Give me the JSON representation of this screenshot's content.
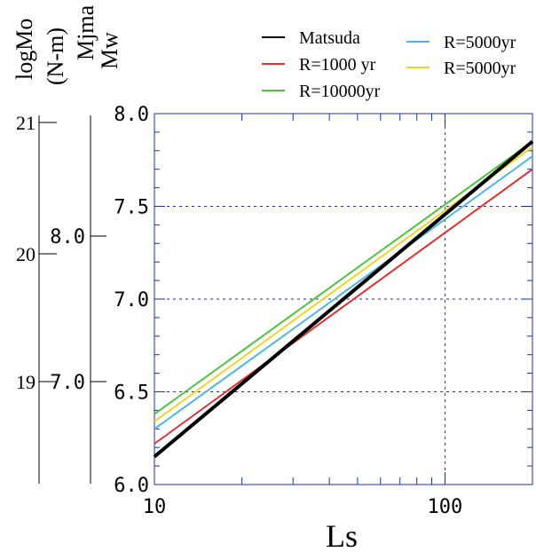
{
  "chart_data": {
    "type": "line",
    "x_scale": "log",
    "xlim": [
      10,
      200
    ],
    "ylim": [
      6.0,
      8.0
    ],
    "xlabel": "Ls",
    "x_tick_labels": [
      "10",
      "100"
    ],
    "y_tick_labels": [
      "6.0",
      "6.5",
      "7.0",
      "7.5",
      "8.0"
    ],
    "y_ticks": [
      6.0,
      6.5,
      7.0,
      7.5,
      8.0
    ],
    "x_major_ticks": [
      10,
      100
    ],
    "grid": "dotted at x=100 and y=6.5, 7.0, 7.5",
    "legend": "top-right",
    "side_axes": [
      {
        "label_lines": [
          "logMo",
          "(N-m)"
        ],
        "tick_labels": [
          "21",
          "20",
          "19"
        ]
      },
      {
        "label_lines": [
          "Mjma",
          "Mw"
        ],
        "tick_labels": [
          "8.0",
          "7.0"
        ]
      }
    ],
    "series": [
      {
        "name": "Matsuda",
        "color": "#000000",
        "x": [
          10,
          200
        ],
        "y": [
          6.15,
          7.85
        ]
      },
      {
        "name": "R=1000  yr",
        "color": "#e03030",
        "x": [
          10,
          200
        ],
        "y": [
          6.22,
          7.7
        ]
      },
      {
        "name": "R=10000yr",
        "color": "#4cc43c",
        "x": [
          10,
          200
        ],
        "y": [
          6.38,
          7.85
        ]
      },
      {
        "name": "R=5000yr",
        "color": "#4fb6e0",
        "x": [
          10,
          200
        ],
        "y": [
          6.3,
          7.77
        ]
      },
      {
        "name": "R=5000yr",
        "color": "#f2d22a",
        "x": [
          10,
          200
        ],
        "y": [
          6.34,
          7.82
        ]
      }
    ]
  }
}
